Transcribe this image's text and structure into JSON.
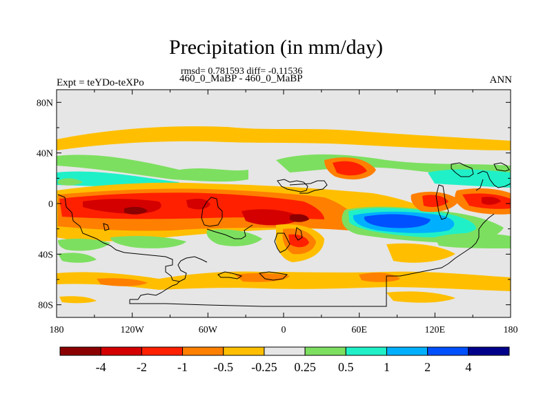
{
  "title": "Precipitation (in mm/day)",
  "stats": "rmsd= 0.781593 diff= -0.11536",
  "subtitle": "460_0_MaBP - 460_0_MaBP",
  "experiment": "Expt = teYDo-teXPo",
  "season": "ANN",
  "lat_ticks": [
    {
      "label": "80N",
      "lat": 80
    },
    {
      "label": "40N",
      "lat": 40
    },
    {
      "label": "0",
      "lat": 0
    },
    {
      "label": "40S",
      "lat": -40
    },
    {
      "label": "80S",
      "lat": -80
    }
  ],
  "lon_ticks": [
    {
      "label": "180",
      "lon": -180
    },
    {
      "label": "120W",
      "lon": -120
    },
    {
      "label": "60W",
      "lon": -60
    },
    {
      "label": "0",
      "lon": 0
    },
    {
      "label": "60E",
      "lon": 60
    },
    {
      "label": "120E",
      "lon": 120
    },
    {
      "label": "180",
      "lon": 180
    }
  ],
  "colorbar": {
    "colors": [
      "#8b0000",
      "#d40000",
      "#ff2000",
      "#ff7f00",
      "#ffbf00",
      "#e6e6e6",
      "#7ddf60",
      "#20f0c8",
      "#00b0ff",
      "#0050ff",
      "#00008b"
    ],
    "labels": [
      "-4",
      "-2",
      "-1",
      "-0.5",
      "-0.25",
      "0.25",
      "0.5",
      "1",
      "2",
      "4"
    ]
  },
  "colors": {
    "background": "#e6e6e6",
    "frame": "#000000",
    "coastline": "#000000"
  }
}
